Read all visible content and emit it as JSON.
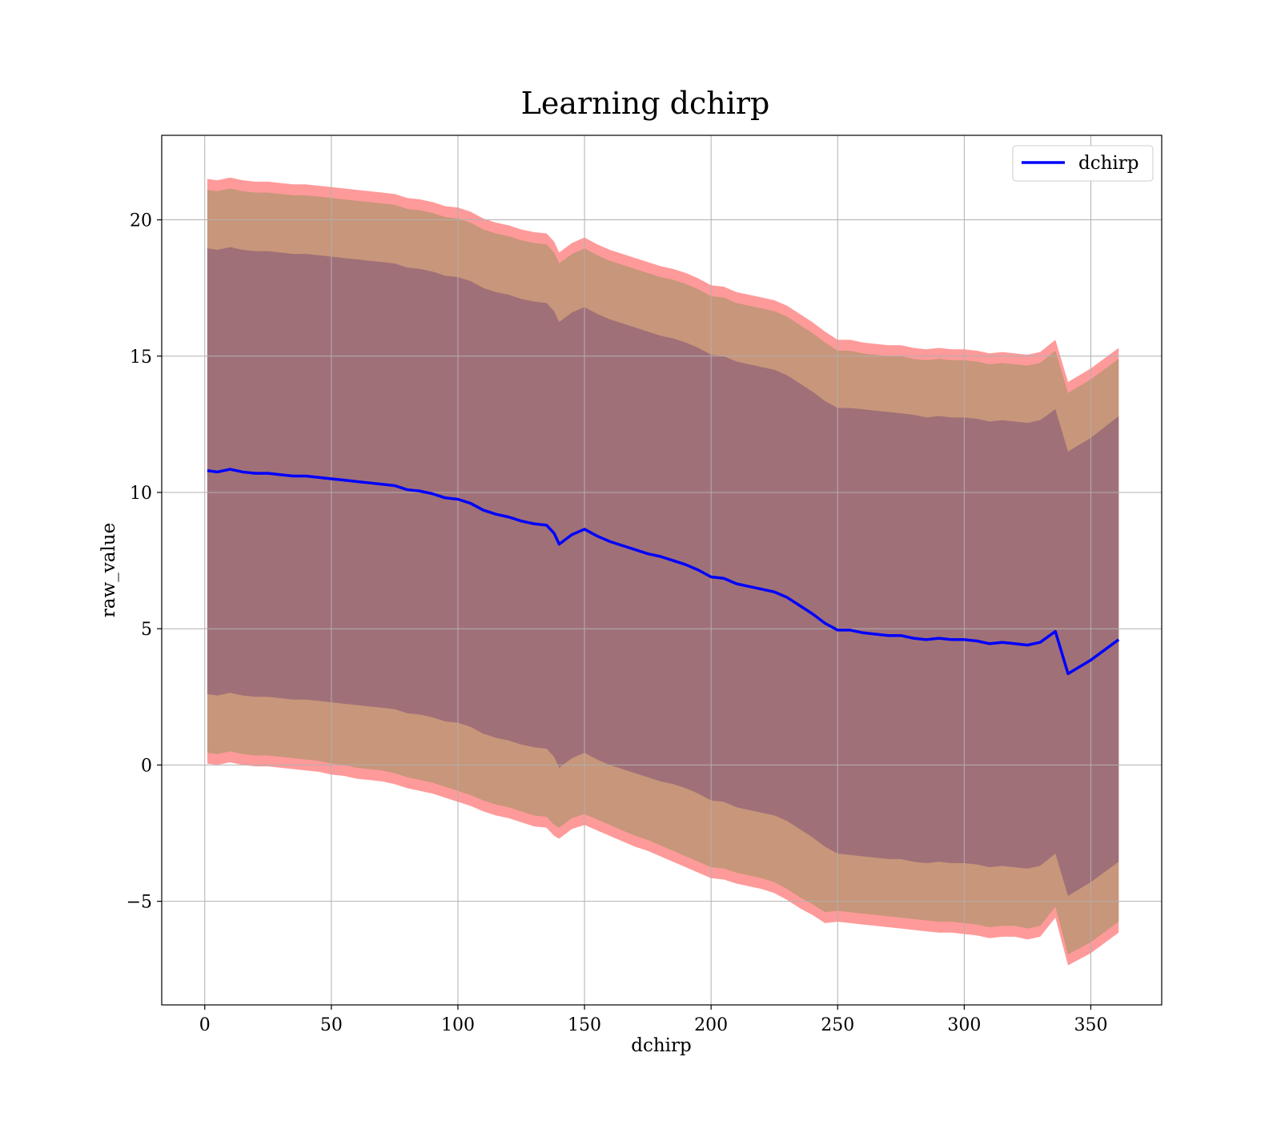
{
  "chart_data": {
    "type": "area",
    "title": "Learning dchirp",
    "xlabel": "dchirp",
    "ylabel": "raw_value",
    "xlim": [
      -17,
      378
    ],
    "ylim": [
      -8.8,
      23.1
    ],
    "xticks": [
      0,
      50,
      100,
      150,
      200,
      250,
      300,
      350
    ],
    "yticks": [
      -5,
      0,
      5,
      10,
      15,
      20
    ],
    "ytick_labels": [
      "−5",
      "0",
      "5",
      "10",
      "15",
      "20"
    ],
    "grid": true,
    "legend": {
      "placement": "top-right",
      "entries": [
        "dchirp"
      ]
    },
    "colors": {
      "line": "#0000ff",
      "outer_band": "#ff9a9a",
      "middle_band": "#c8967a",
      "inner_band": "#a07078",
      "grid": "#b0b0b0"
    },
    "x": [
      1,
      5,
      10,
      15,
      20,
      25,
      30,
      35,
      40,
      45,
      50,
      55,
      60,
      65,
      70,
      75,
      80,
      85,
      90,
      95,
      100,
      105,
      110,
      115,
      120,
      125,
      130,
      135,
      138,
      140,
      145,
      150,
      155,
      160,
      165,
      170,
      175,
      180,
      185,
      190,
      195,
      200,
      205,
      210,
      215,
      220,
      225,
      230,
      235,
      240,
      245,
      250,
      255,
      260,
      265,
      270,
      275,
      280,
      285,
      290,
      295,
      300,
      305,
      310,
      315,
      320,
      325,
      330,
      336,
      341,
      350,
      361
    ],
    "series": [
      {
        "name": "dchirp",
        "values": [
          10.8,
          10.75,
          10.85,
          10.75,
          10.7,
          10.7,
          10.65,
          10.6,
          10.6,
          10.55,
          10.5,
          10.45,
          10.4,
          10.35,
          10.3,
          10.25,
          10.1,
          10.05,
          9.95,
          9.8,
          9.75,
          9.6,
          9.35,
          9.2,
          9.1,
          8.95,
          8.85,
          8.8,
          8.5,
          8.1,
          8.45,
          8.65,
          8.4,
          8.2,
          8.05,
          7.9,
          7.75,
          7.65,
          7.5,
          7.35,
          7.15,
          6.9,
          6.85,
          6.65,
          6.55,
          6.45,
          6.35,
          6.15,
          5.85,
          5.55,
          5.2,
          4.95,
          4.95,
          4.85,
          4.8,
          4.75,
          4.75,
          4.65,
          4.6,
          4.65,
          4.6,
          4.6,
          4.55,
          4.45,
          4.5,
          4.45,
          4.4,
          4.5,
          4.9,
          3.35,
          3.85,
          4.6
        ]
      }
    ],
    "bands": [
      {
        "lower": [
          0.05,
          0.0,
          0.1,
          0.0,
          -0.05,
          -0.05,
          -0.1,
          -0.15,
          -0.2,
          -0.25,
          -0.35,
          -0.4,
          -0.5,
          -0.55,
          -0.6,
          -0.7,
          -0.85,
          -0.95,
          -1.05,
          -1.2,
          -1.35,
          -1.5,
          -1.7,
          -1.85,
          -1.95,
          -2.1,
          -2.25,
          -2.3,
          -2.6,
          -2.7,
          -2.35,
          -2.2,
          -2.4,
          -2.6,
          -2.8,
          -3.0,
          -3.15,
          -3.35,
          -3.55,
          -3.75,
          -3.95,
          -4.15,
          -4.2,
          -4.35,
          -4.45,
          -4.55,
          -4.7,
          -4.95,
          -5.25,
          -5.5,
          -5.8,
          -5.75,
          -5.8,
          -5.85,
          -5.9,
          -5.95,
          -6.0,
          -6.05,
          -6.1,
          -6.15,
          -6.15,
          -6.2,
          -6.25,
          -6.35,
          -6.3,
          -6.3,
          -6.4,
          -6.3,
          -5.6,
          -7.35,
          -6.9,
          -6.15
        ],
        "upper": [
          21.5,
          21.45,
          21.55,
          21.45,
          21.4,
          21.4,
          21.35,
          21.3,
          21.3,
          21.25,
          21.2,
          21.15,
          21.1,
          21.05,
          21.0,
          20.95,
          20.8,
          20.75,
          20.65,
          20.5,
          20.45,
          20.3,
          20.05,
          19.9,
          19.8,
          19.65,
          19.55,
          19.5,
          19.2,
          18.8,
          19.15,
          19.35,
          19.1,
          18.9,
          18.75,
          18.6,
          18.45,
          18.3,
          18.2,
          18.05,
          17.85,
          17.6,
          17.55,
          17.35,
          17.25,
          17.15,
          17.05,
          16.85,
          16.55,
          16.25,
          15.9,
          15.6,
          15.6,
          15.5,
          15.45,
          15.4,
          15.4,
          15.3,
          15.25,
          15.3,
          15.25,
          15.25,
          15.2,
          15.1,
          15.15,
          15.1,
          15.05,
          15.15,
          15.6,
          14.05,
          14.55,
          15.3
        ]
      },
      {
        "lower": [
          0.45,
          0.4,
          0.5,
          0.4,
          0.35,
          0.35,
          0.3,
          0.25,
          0.2,
          0.15,
          0.05,
          0.0,
          -0.1,
          -0.15,
          -0.2,
          -0.3,
          -0.45,
          -0.55,
          -0.65,
          -0.8,
          -0.95,
          -1.1,
          -1.3,
          -1.45,
          -1.55,
          -1.7,
          -1.85,
          -1.9,
          -2.2,
          -2.3,
          -1.95,
          -1.8,
          -2.0,
          -2.2,
          -2.4,
          -2.6,
          -2.75,
          -2.95,
          -3.15,
          -3.35,
          -3.55,
          -3.75,
          -3.8,
          -3.95,
          -4.05,
          -4.15,
          -4.3,
          -4.55,
          -4.85,
          -5.1,
          -5.4,
          -5.35,
          -5.4,
          -5.45,
          -5.5,
          -5.55,
          -5.6,
          -5.65,
          -5.7,
          -5.75,
          -5.75,
          -5.8,
          -5.85,
          -5.95,
          -5.9,
          -5.9,
          -6.0,
          -5.9,
          -5.2,
          -6.95,
          -6.5,
          -5.75
        ],
        "upper": [
          21.1,
          21.05,
          21.15,
          21.05,
          21.0,
          21.0,
          20.95,
          20.9,
          20.9,
          20.85,
          20.8,
          20.75,
          20.7,
          20.65,
          20.6,
          20.55,
          20.4,
          20.35,
          20.25,
          20.1,
          20.05,
          19.9,
          19.65,
          19.5,
          19.4,
          19.25,
          19.15,
          19.1,
          18.8,
          18.4,
          18.75,
          18.95,
          18.7,
          18.5,
          18.35,
          18.2,
          18.05,
          17.9,
          17.8,
          17.65,
          17.45,
          17.2,
          17.15,
          16.95,
          16.85,
          16.75,
          16.65,
          16.45,
          16.15,
          15.85,
          15.5,
          15.2,
          15.2,
          15.1,
          15.05,
          15.0,
          15.0,
          14.9,
          14.85,
          14.9,
          14.85,
          14.85,
          14.8,
          14.7,
          14.75,
          14.7,
          14.65,
          14.75,
          15.2,
          13.65,
          14.15,
          14.9
        ]
      },
      {
        "lower": [
          2.6,
          2.55,
          2.65,
          2.55,
          2.5,
          2.5,
          2.45,
          2.4,
          2.4,
          2.35,
          2.3,
          2.25,
          2.2,
          2.15,
          2.1,
          2.05,
          1.9,
          1.85,
          1.75,
          1.6,
          1.55,
          1.4,
          1.15,
          1.0,
          0.9,
          0.75,
          0.65,
          0.6,
          0.3,
          -0.1,
          0.25,
          0.45,
          0.2,
          0.0,
          -0.15,
          -0.3,
          -0.45,
          -0.6,
          -0.7,
          -0.85,
          -1.05,
          -1.3,
          -1.35,
          -1.55,
          -1.65,
          -1.75,
          -1.85,
          -2.05,
          -2.35,
          -2.65,
          -3.0,
          -3.25,
          -3.3,
          -3.35,
          -3.4,
          -3.45,
          -3.45,
          -3.55,
          -3.6,
          -3.55,
          -3.6,
          -3.6,
          -3.65,
          -3.75,
          -3.7,
          -3.75,
          -3.8,
          -3.7,
          -3.25,
          -4.8,
          -4.3,
          -3.55
        ],
        "upper": [
          18.95,
          18.9,
          19.0,
          18.9,
          18.85,
          18.85,
          18.8,
          18.75,
          18.75,
          18.7,
          18.65,
          18.6,
          18.55,
          18.5,
          18.45,
          18.4,
          18.25,
          18.2,
          18.1,
          17.95,
          17.9,
          17.75,
          17.5,
          17.35,
          17.25,
          17.1,
          17.0,
          16.95,
          16.65,
          16.25,
          16.6,
          16.8,
          16.55,
          16.35,
          16.2,
          16.05,
          15.9,
          15.75,
          15.65,
          15.5,
          15.3,
          15.05,
          15.0,
          14.8,
          14.7,
          14.6,
          14.5,
          14.3,
          14.0,
          13.7,
          13.35,
          13.1,
          13.1,
          13.05,
          13.0,
          12.95,
          12.9,
          12.85,
          12.75,
          12.8,
          12.75,
          12.75,
          12.7,
          12.6,
          12.65,
          12.6,
          12.55,
          12.65,
          13.05,
          11.5,
          12.0,
          12.8
        ]
      }
    ]
  }
}
